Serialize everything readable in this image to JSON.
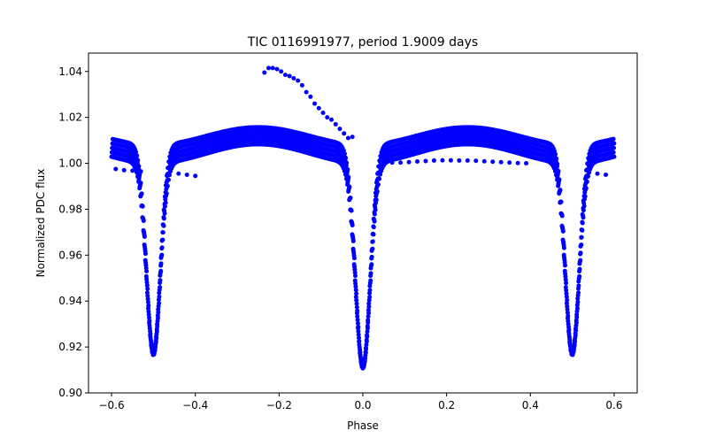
{
  "chart_data": {
    "type": "scatter",
    "title": "TIC 0116991977, period 1.9009 days",
    "xlabel": "Phase",
    "ylabel": "Normalized PDC flux",
    "xlim": [
      -0.655,
      0.655
    ],
    "ylim": [
      0.9,
      1.048
    ],
    "xticks": [
      -0.6,
      -0.4,
      -0.2,
      0.0,
      0.2,
      0.4,
      0.6
    ],
    "xtick_labels": [
      "−0.6",
      "−0.4",
      "−0.2",
      "0.0",
      "0.2",
      "0.4",
      "0.6"
    ],
    "yticks": [
      0.9,
      0.92,
      0.94,
      0.96,
      0.98,
      1.0,
      1.02,
      1.04
    ],
    "ytick_labels": [
      "0.90",
      "0.92",
      "0.94",
      "0.96",
      "0.98",
      "1.00",
      "1.02",
      "1.04"
    ],
    "grid": false,
    "marker_color": "#0000ff",
    "model": {
      "phase_range": [
        -0.6,
        0.6
      ],
      "baseline": 1.004,
      "primary_eclipse": {
        "center": 0.0,
        "depth": 0.093,
        "width": 0.0175
      },
      "secondary_eclipse": {
        "center": 0.5,
        "depth": 0.087,
        "width": 0.0165
      },
      "out_of_eclipse_hump_amplitude": 0.008,
      "hump_centers": [
        -0.25,
        0.25
      ],
      "band_offsets": [
        -0.004,
        -0.002,
        0.0,
        0.002,
        0.004
      ]
    },
    "outlier_series": [
      {
        "name": "",
        "x": [
          -0.235,
          -0.225,
          -0.215,
          -0.205,
          -0.195,
          -0.185,
          -0.175,
          -0.165,
          -0.155,
          -0.145,
          -0.135,
          -0.125,
          -0.115,
          -0.105,
          -0.095,
          -0.085,
          -0.075,
          -0.065,
          -0.055,
          -0.045,
          -0.035,
          -0.025
        ],
        "y": [
          1.0395,
          1.0415,
          1.0415,
          1.041,
          1.04,
          1.0385,
          1.038,
          1.037,
          1.036,
          1.034,
          1.031,
          1.029,
          1.026,
          1.024,
          1.022,
          1.02,
          1.019,
          1.017,
          1.015,
          1.013,
          1.011,
          1.0115
        ]
      },
      {
        "name": "",
        "x": [
          0.07,
          0.09,
          0.11,
          0.13,
          0.15,
          0.17,
          0.19,
          0.21,
          0.23,
          0.25,
          0.27,
          0.29,
          0.31,
          0.33,
          0.35,
          0.37,
          0.39
        ],
        "y": [
          1.0003,
          1.0003,
          1.0005,
          1.0008,
          1.001,
          1.0012,
          1.0013,
          1.0013,
          1.0012,
          1.0012,
          1.0011,
          1.0009,
          1.0007,
          1.0005,
          1.0003,
          1.0001,
          1.0
        ]
      },
      {
        "name": "",
        "x": [
          -0.59,
          -0.57,
          -0.55,
          -0.53
        ],
        "y": [
          0.9975,
          0.997,
          0.9968,
          0.9965
        ]
      },
      {
        "name": "",
        "x": [
          -0.44,
          -0.42,
          -0.4
        ],
        "y": [
          0.9955,
          0.995,
          0.9945
        ]
      },
      {
        "name": "",
        "x": [
          0.54,
          0.56,
          0.58
        ],
        "y": [
          0.996,
          0.9955,
          0.995
        ]
      }
    ]
  }
}
